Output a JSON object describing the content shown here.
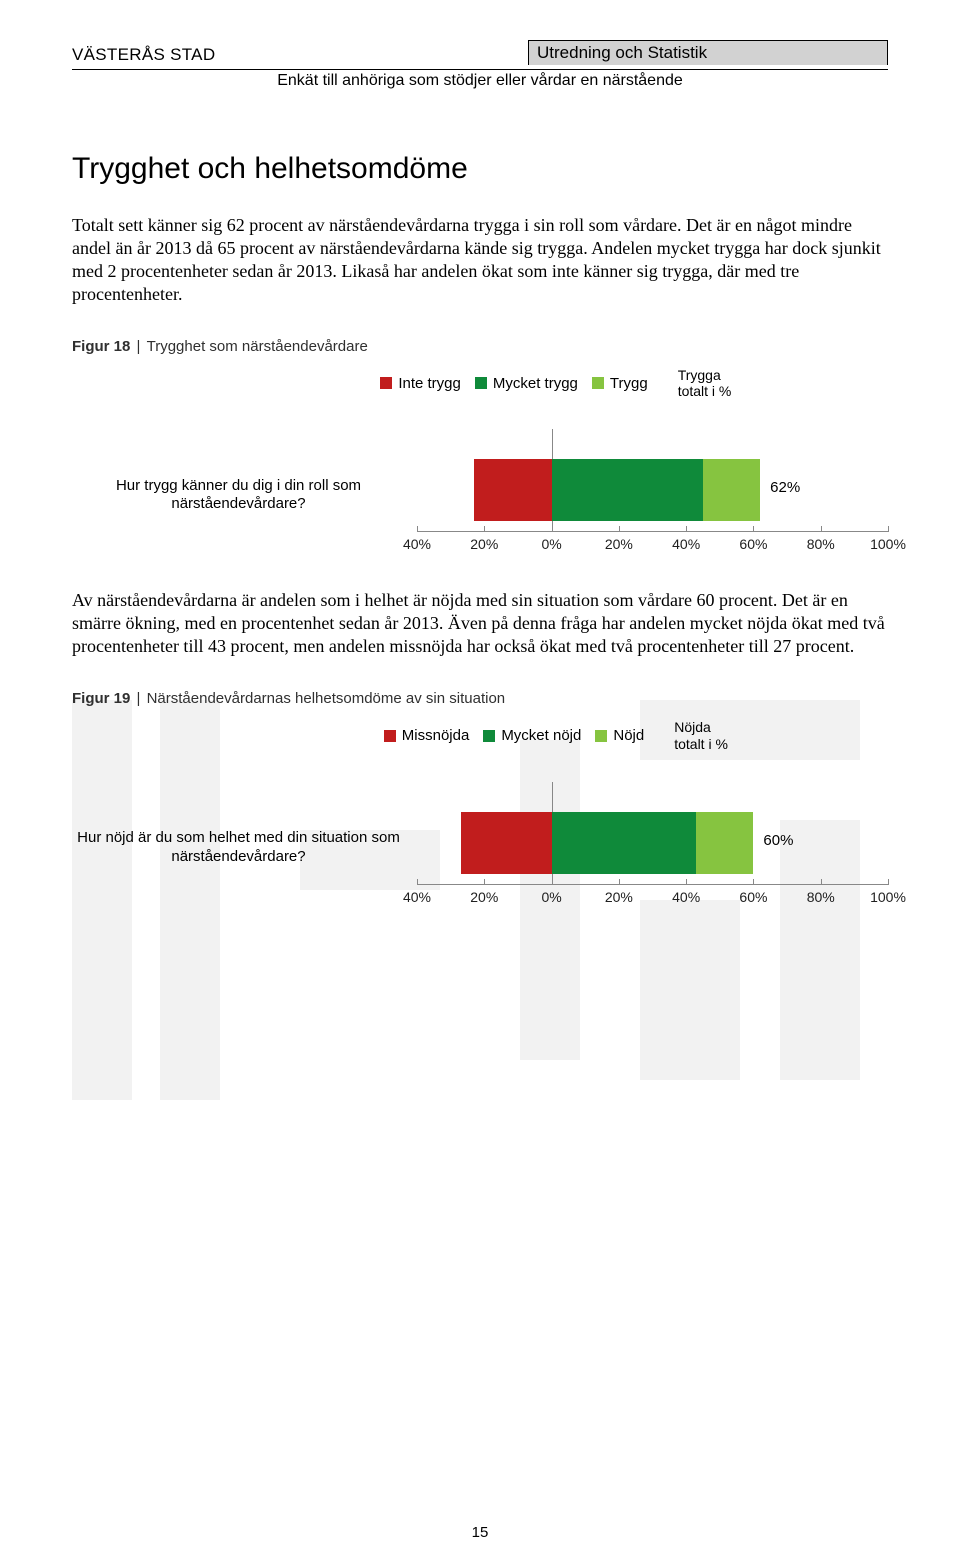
{
  "header": {
    "left": "VÄSTERÅS STAD",
    "right": "Utredning och Statistik",
    "sub": "Enkät till anhöriga som stödjer eller vårdar en närstående"
  },
  "colors": {
    "red": "#c11d1d",
    "green_dark": "#0f8a3a",
    "green_light": "#86c440",
    "grid": "#888888",
    "header_box_bg": "#d2d2d2",
    "wm": "#f2f2f2",
    "text": "#000000"
  },
  "section_title": "Trygghet och helhetsomdöme",
  "para1": "Totalt sett känner sig 62 procent av närståendevårdarna trygga i sin roll som vårdare. Det är en något mindre andel än år 2013 då 65 procent av närståendevårdarna kände sig trygga. Andelen mycket trygga har dock sjunkit med 2 procentenheter sedan år 2013. Likaså har andelen ökat som inte känner sig trygga, där med tre procentenheter.",
  "para2": "Av närståendevårdarna är andelen som i helhet är nöjda med sin situation som vårdare 60 procent. Det är en smärre ökning, med en procentenhet sedan år 2013. Även på denna fråga har andelen mycket nöjda ökat med två procentenheter till 43 procent, men andelen missnöjda har också ökat med två procentenheter till 27 procent.",
  "fig18": {
    "title_prefix": "Figur 18",
    "title_rest": "Trygghet som närståendevårdare",
    "legend": [
      "Inte trygg",
      "Mycket trygg",
      "Trygg"
    ],
    "legend_side_l1": "Trygga",
    "legend_side_l2": "totalt i %",
    "question": "Hur trygg känner du dig i din roll som närståendevårdare?",
    "type": "stacked-diverging-bar",
    "neg_pct": 23,
    "pos_dark_pct": 45,
    "pos_light_pct": 17,
    "total_label": "62%",
    "xmin": -40,
    "xmax": 100,
    "xtick_step": 20,
    "xtick_labels": [
      "40%",
      "20%",
      "0%",
      "20%",
      "40%",
      "60%",
      "80%",
      "100%"
    ],
    "bar_colors": [
      "#c11d1d",
      "#0f8a3a",
      "#86c440"
    ]
  },
  "fig19": {
    "title_prefix": "Figur 19",
    "title_rest": "Närståendevårdarnas helhetsomdöme av sin situation",
    "legend": [
      "Missnöjda",
      "Mycket nöjd",
      "Nöjd"
    ],
    "legend_side_l1": "Nöjda",
    "legend_side_l2": "totalt i %",
    "question": "Hur nöjd är du som helhet med din situation som närståendevårdare?",
    "type": "stacked-diverging-bar",
    "neg_pct": 27,
    "pos_dark_pct": 43,
    "pos_light_pct": 17,
    "total_label": "60%",
    "xmin": -40,
    "xmax": 100,
    "xtick_step": 20,
    "xtick_labels": [
      "40%",
      "20%",
      "0%",
      "20%",
      "40%",
      "60%",
      "80%",
      "100%"
    ],
    "bar_colors": [
      "#c11d1d",
      "#0f8a3a",
      "#86c440"
    ]
  },
  "page_number": "15"
}
